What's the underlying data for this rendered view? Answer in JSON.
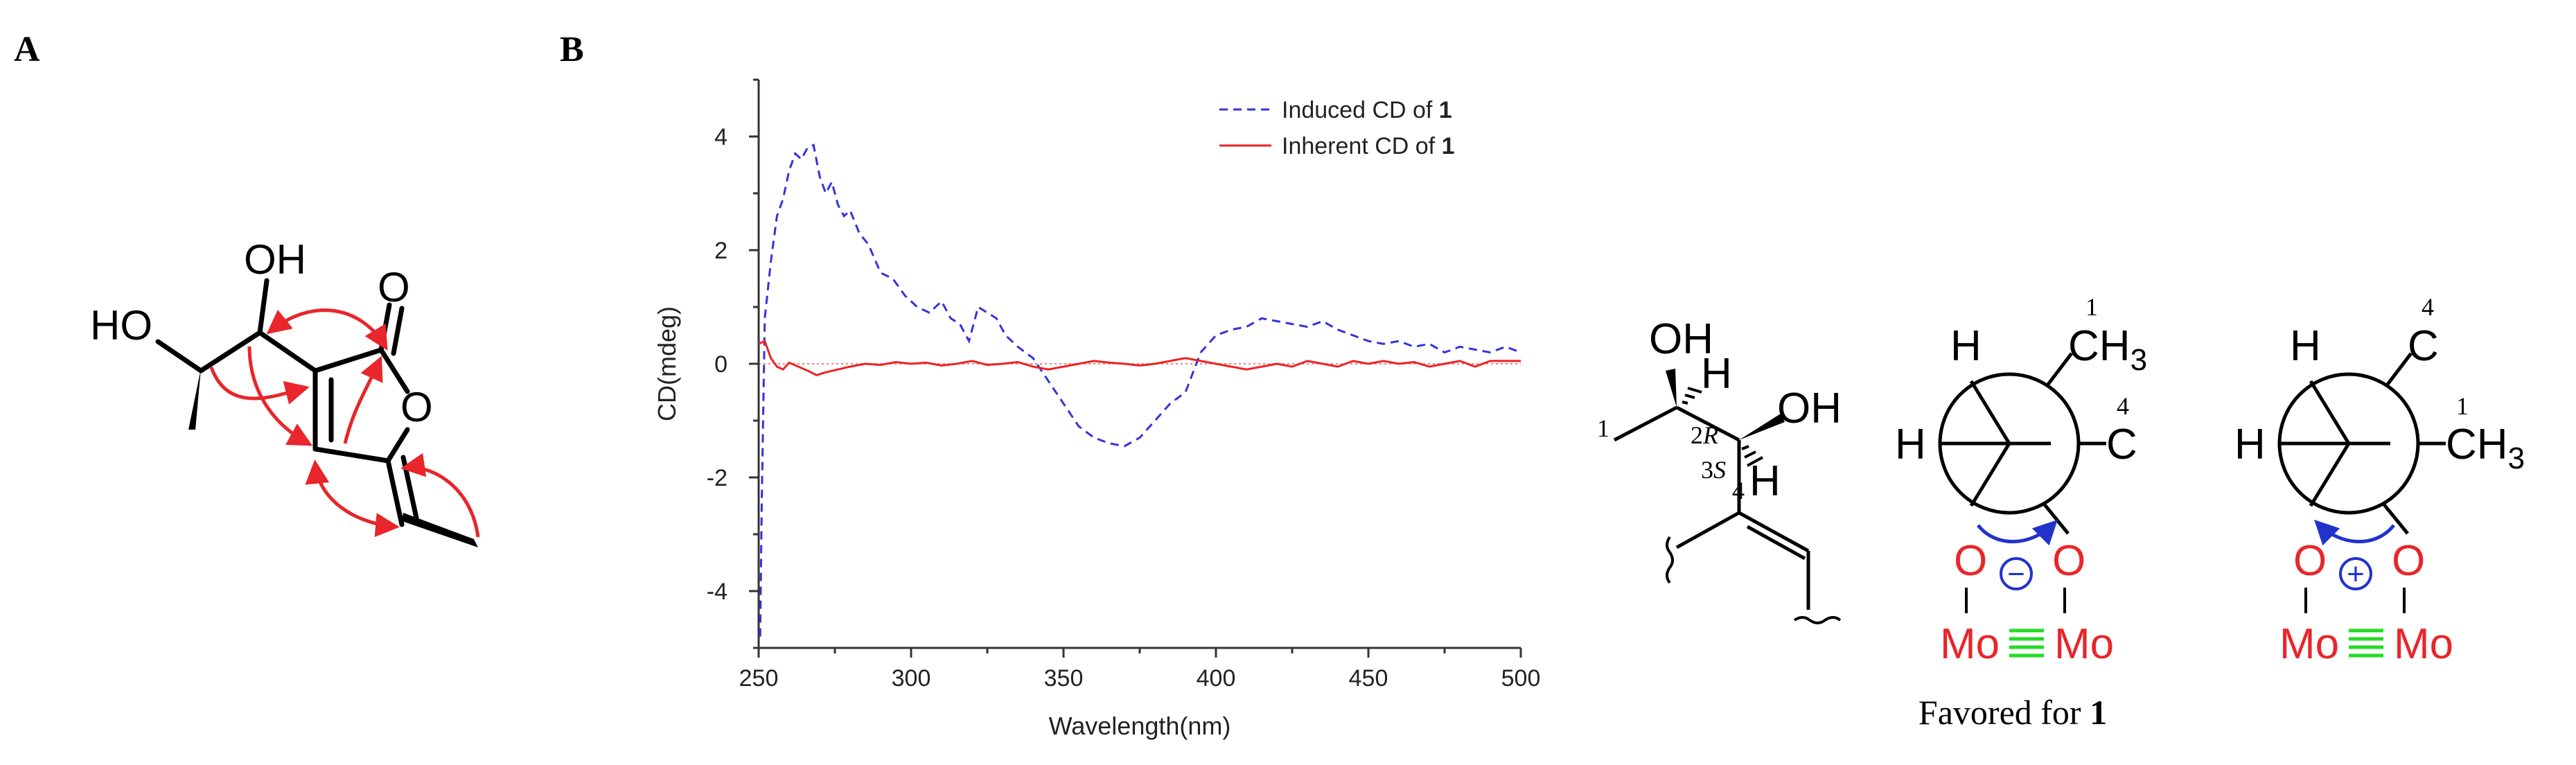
{
  "panel_labels": {
    "a": "A",
    "b": "B"
  },
  "structure_a": {
    "oh_top": "OH",
    "ho_left": "HO",
    "carbonyl_o": "O",
    "ring_o": "O"
  },
  "stereo": {
    "oh1": "OH",
    "h1": "H",
    "oh2": "OH",
    "h2": "H",
    "c1": "1",
    "c2": "2",
    "c2_config": "R",
    "c3": "3",
    "c3_config": "S",
    "c4": "4"
  },
  "newman_left": {
    "h_top": "H",
    "h_left": "H",
    "ch": "CH",
    "sub3": "3",
    "c": "C",
    "label_1": "1",
    "label_4": "4",
    "o1": "O",
    "o2": "O",
    "mo1": "Mo",
    "mo2": "Mo",
    "sign": "−"
  },
  "newman_right": {
    "h_top": "H",
    "h_left": "H",
    "c": "C",
    "ch": "CH",
    "sub3": "3",
    "label_4": "4",
    "label_1": "1",
    "o1": "O",
    "o2": "O",
    "mo1": "Mo",
    "mo2": "Mo",
    "sign": "+"
  },
  "caption": {
    "text": "Favored for ",
    "bold": "1"
  },
  "colors": {
    "induced": "#3333dd",
    "inherent": "#ee2222",
    "arrow_red": "#e8262b",
    "oxygen_red": "#e8262b",
    "mo_red": "#e8262b",
    "triple_green": "#22dd22",
    "blue_arrow": "#2233cc"
  },
  "chart_data": {
    "type": "line",
    "title": "",
    "xlabel": "Wavelength(nm)",
    "ylabel": "CD(mdeg)",
    "xlim": [
      250,
      500
    ],
    "ylim": [
      -5,
      5
    ],
    "xticks": [
      250,
      300,
      350,
      400,
      450,
      500
    ],
    "yticks": [
      -4,
      -2,
      0,
      2,
      4
    ],
    "legend": "top-right",
    "series": [
      {
        "name": "Induced CD of ",
        "name_bold": "1",
        "style": "dashed",
        "x": [
          250.5,
          251,
          252,
          254,
          256,
          258,
          260,
          262,
          264,
          266,
          268,
          270,
          272,
          274,
          276,
          278,
          280,
          283,
          286,
          290,
          294,
          298,
          302,
          306,
          310,
          313,
          316,
          319,
          322,
          325,
          328,
          331,
          335,
          340,
          345,
          350,
          355,
          360,
          365,
          370,
          375,
          380,
          385,
          390,
          395,
          400,
          405,
          410,
          415,
          420,
          425,
          430,
          435,
          440,
          445,
          450,
          455,
          460,
          465,
          470,
          475,
          480,
          485,
          490,
          495,
          500
        ],
        "y": [
          -4.8,
          -2.5,
          0.8,
          1.8,
          2.6,
          2.9,
          3.4,
          3.7,
          3.6,
          3.8,
          3.85,
          3.3,
          3.0,
          3.2,
          2.8,
          2.6,
          2.7,
          2.3,
          2.1,
          1.6,
          1.5,
          1.2,
          1.0,
          0.9,
          1.1,
          0.8,
          0.7,
          0.4,
          1.0,
          0.9,
          0.8,
          0.5,
          0.3,
          0.1,
          -0.3,
          -0.7,
          -1.1,
          -1.3,
          -1.4,
          -1.45,
          -1.3,
          -1.0,
          -0.7,
          -0.5,
          0.2,
          0.5,
          0.6,
          0.65,
          0.8,
          0.75,
          0.7,
          0.65,
          0.75,
          0.6,
          0.5,
          0.4,
          0.35,
          0.4,
          0.3,
          0.35,
          0.2,
          0.3,
          0.25,
          0.2,
          0.3,
          0.2
        ]
      },
      {
        "name": "Inherent CD of ",
        "name_bold": "1",
        "style": "solid",
        "x": [
          250,
          252,
          254,
          256,
          258,
          260,
          263,
          266,
          269,
          272,
          276,
          280,
          285,
          290,
          295,
          300,
          305,
          310,
          315,
          320,
          325,
          330,
          335,
          340,
          345,
          350,
          355,
          360,
          365,
          370,
          375,
          380,
          385,
          390,
          395,
          400,
          405,
          410,
          415,
          420,
          425,
          430,
          435,
          440,
          445,
          450,
          455,
          460,
          465,
          470,
          475,
          480,
          485,
          490,
          495,
          500
        ],
        "y": [
          0.35,
          0.4,
          0.1,
          -0.05,
          -0.1,
          0.02,
          -0.05,
          -0.12,
          -0.2,
          -0.15,
          -0.1,
          -0.05,
          0.0,
          -0.02,
          0.03,
          0.0,
          0.02,
          -0.03,
          0.0,
          0.05,
          -0.02,
          0.0,
          0.03,
          -0.05,
          -0.1,
          -0.05,
          0.0,
          0.05,
          0.02,
          0.0,
          -0.03,
          0.0,
          0.05,
          0.1,
          0.05,
          0.0,
          -0.05,
          -0.1,
          -0.05,
          0.0,
          -0.05,
          0.05,
          0.0,
          -0.05,
          0.05,
          0.0,
          0.05,
          0.0,
          0.03,
          -0.05,
          0.0,
          0.05,
          -0.05,
          0.05,
          0.05,
          0.05
        ]
      }
    ]
  }
}
